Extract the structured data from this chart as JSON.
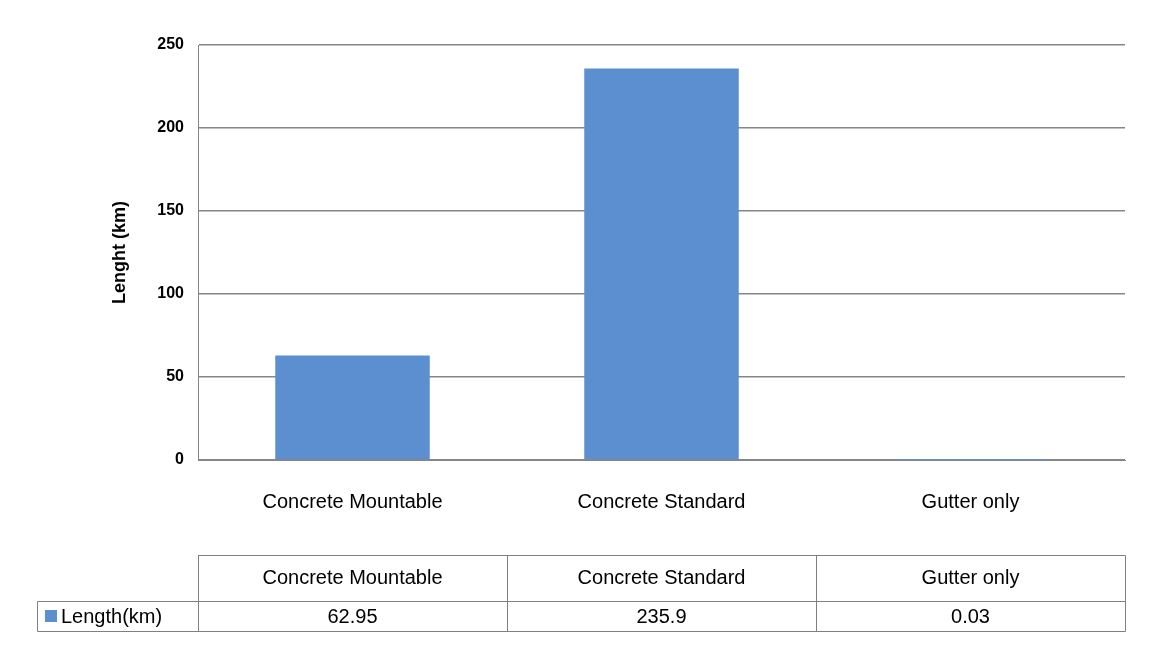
{
  "chart_data": {
    "type": "bar",
    "ylabel": "Lenght (km)",
    "categories": [
      "Concrete Mountable",
      "Concrete Standard",
      "Gutter only"
    ],
    "series": [
      {
        "name": "Length(km)",
        "color": "#5b8fcf",
        "values": [
          62.95,
          235.9,
          0.03
        ]
      }
    ],
    "ylim": [
      0,
      250
    ],
    "yticks": [
      0,
      50,
      100,
      150,
      200,
      250
    ],
    "grid": "y",
    "legend": "bottom",
    "data_labels": true
  }
}
